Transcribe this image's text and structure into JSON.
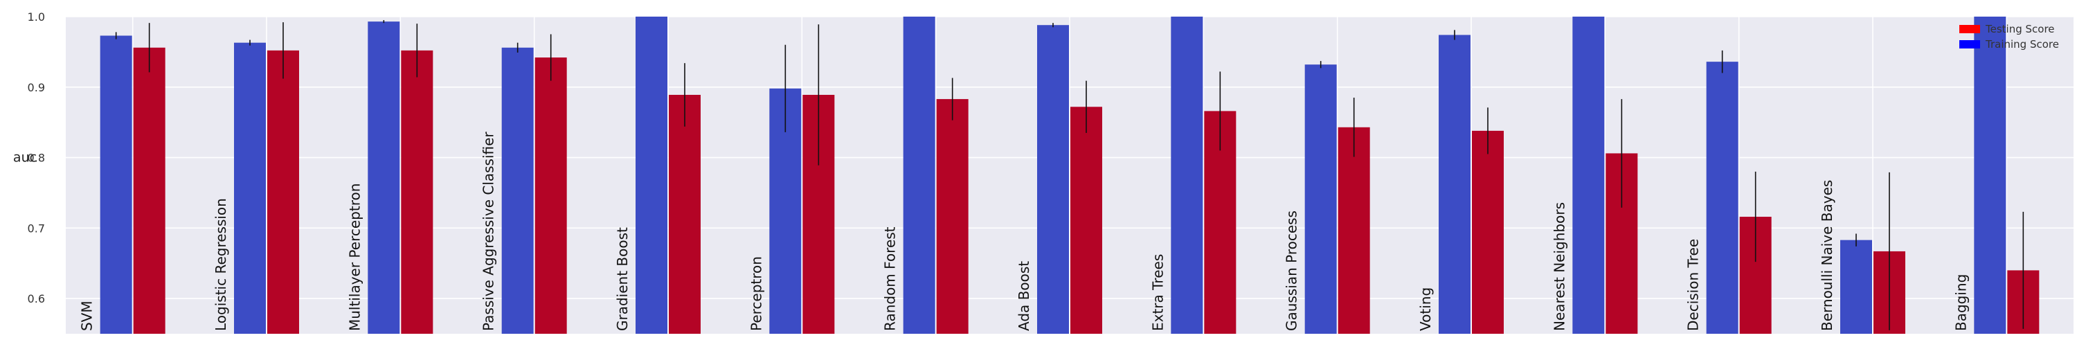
{
  "chart_data": {
    "type": "bar",
    "title": "",
    "xlabel": "",
    "ylabel": "auc",
    "ylim": [
      0.55,
      1.0
    ],
    "yticks": [
      "0.6",
      "0.7",
      "0.8",
      "0.9",
      "1.0"
    ],
    "grid": true,
    "legend_position": "top-right",
    "categories": [
      "SVM",
      "Logistic Regression",
      "Multilayer Perceptron",
      "Passive Aggressive Classifier",
      "Gradient Boost",
      "Perceptron",
      "Random Forest",
      "Ada Boost",
      "Extra Trees",
      "Gaussian Process",
      "Voting",
      "Nearest Neighbors",
      "Decision Tree",
      "Bernoulli Naive Bayes",
      "Bagging"
    ],
    "series": [
      {
        "name": "Training Score",
        "color": "#3c4cc5",
        "values": [
          0.973,
          0.963,
          0.993,
          0.956,
          1.0,
          0.898,
          1.0,
          0.988,
          1.0,
          0.932,
          0.974,
          1.0,
          0.936,
          0.683,
          1.0
        ],
        "errors": [
          0.005,
          0.004,
          0.002,
          0.007,
          0.0,
          0.062,
          0.0,
          0.003,
          0.0,
          0.005,
          0.007,
          0.0,
          0.016,
          0.009,
          0.0
        ]
      },
      {
        "name": "Testing Score",
        "color": "#b40426",
        "values": [
          0.956,
          0.952,
          0.952,
          0.942,
          0.889,
          0.889,
          0.883,
          0.872,
          0.866,
          0.843,
          0.838,
          0.806,
          0.716,
          0.667,
          0.64
        ],
        "errors": [
          0.035,
          0.04,
          0.038,
          0.033,
          0.045,
          0.1,
          0.03,
          0.037,
          0.056,
          0.042,
          0.033,
          0.077,
          0.064,
          0.112,
          0.083
        ]
      }
    ]
  }
}
